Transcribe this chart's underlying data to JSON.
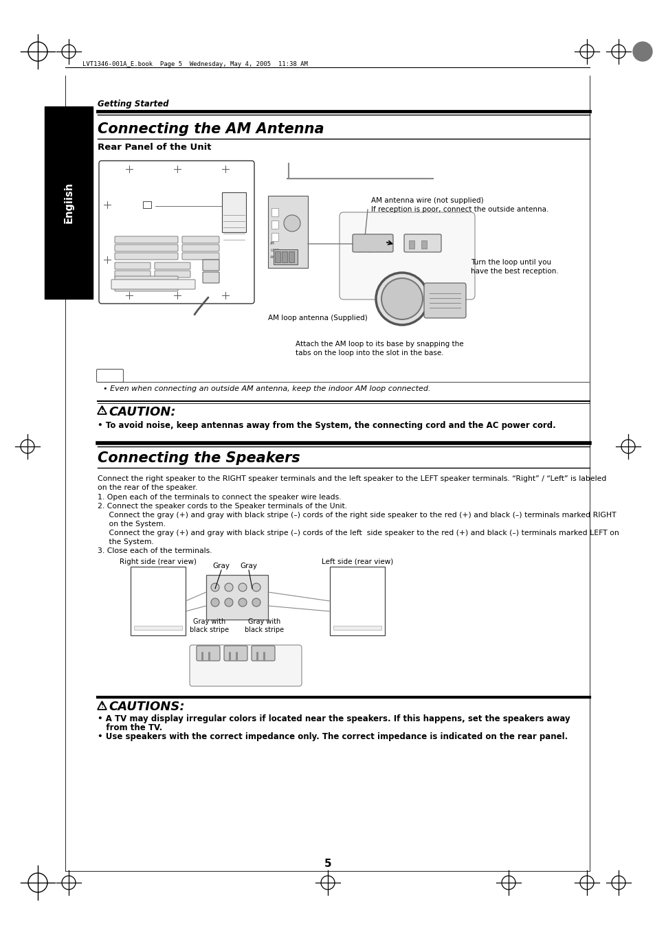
{
  "bg_color": "#ffffff",
  "header_text": "LVT1346-001A_E.book  Page 5  Wednesday, May 4, 2005  11:38 AM",
  "section_label": "Getting Started",
  "title1": "Connecting the AM Antenna",
  "subtitle1": "Rear Panel of the Unit",
  "title2": "Connecting the Speakers",
  "note_text": "• Even when connecting an outside AM antenna, keep the indoor AM loop connected.",
  "caution_title": "CAUTION:",
  "caution_text": "• To avoid noise, keep antennas away from the System, the connecting cord and the AC power cord.",
  "cautions_title": "CAUTIONS:",
  "cautions_line1": "• A TV may display irregular colors if located near the speakers. If this happens, set the speakers away",
  "cautions_line2": "   from the TV.",
  "cautions_line3": "• Use speakers with the correct impedance only. The correct impedance is indicated on the rear panel.",
  "speaker_intro1": "Connect the right speaker to the RIGHT speaker terminals and the left speaker to the LEFT speaker terminals. “Right” / “Left” is labeled",
  "speaker_intro2": "on the rear of the speaker.",
  "step1": "1. Open each of the terminals to connect the speaker wire leads.",
  "step2": "2. Connect the speaker cords to the Speaker terminals of the Unit.",
  "step2a": "   Connect the gray (+) and gray with black stripe (–) cords of the right side speaker to the red (+) and black (–) terminals marked RIGHT",
  "step2b": "   on the System.",
  "step2c": "   Connect the gray (+) and gray with black stripe (–) cords of the left  side speaker to the red (+) and black (–) terminals marked LEFT on",
  "step2d": "   the System.",
  "step3": "3. Close each of the terminals.",
  "am_wire_label1": "AM antenna wire (not supplied)",
  "am_wire_label2": "If reception is poor, connect the outside antenna.",
  "am_loop_label": "AM loop antenna (Supplied)",
  "am_turn_label1": "Turn the loop until you",
  "am_turn_label2": "have the best reception.",
  "am_attach_label1": "Attach the AM loop to its base by snapping the",
  "am_attach_label2": "tabs on the loop into the slot in the base.",
  "right_side_label": "Right side (rear view)",
  "left_side_label": "Left side (rear view)",
  "gray_label1": "Gray",
  "gray_label2": "Gray",
  "gray_black1": "Gray with\nblack stripe",
  "gray_black2": "Gray with\nblack stripe",
  "page_number": "5",
  "english_label": "English"
}
